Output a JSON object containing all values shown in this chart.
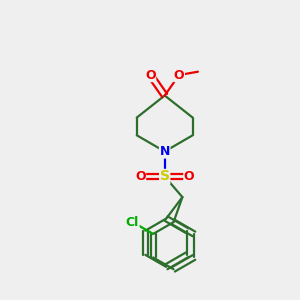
{
  "bg_color": "#efefef",
  "bond_color": "#2d6e2d",
  "N_color": "#0000ee",
  "O_color": "#ee0000",
  "S_color": "#cccc00",
  "Cl_color": "#00aa00",
  "line_width": 1.6,
  "figsize": [
    3.0,
    3.0
  ],
  "dpi": 100,
  "xlim": [
    0,
    10
  ],
  "ylim": [
    0,
    10
  ]
}
